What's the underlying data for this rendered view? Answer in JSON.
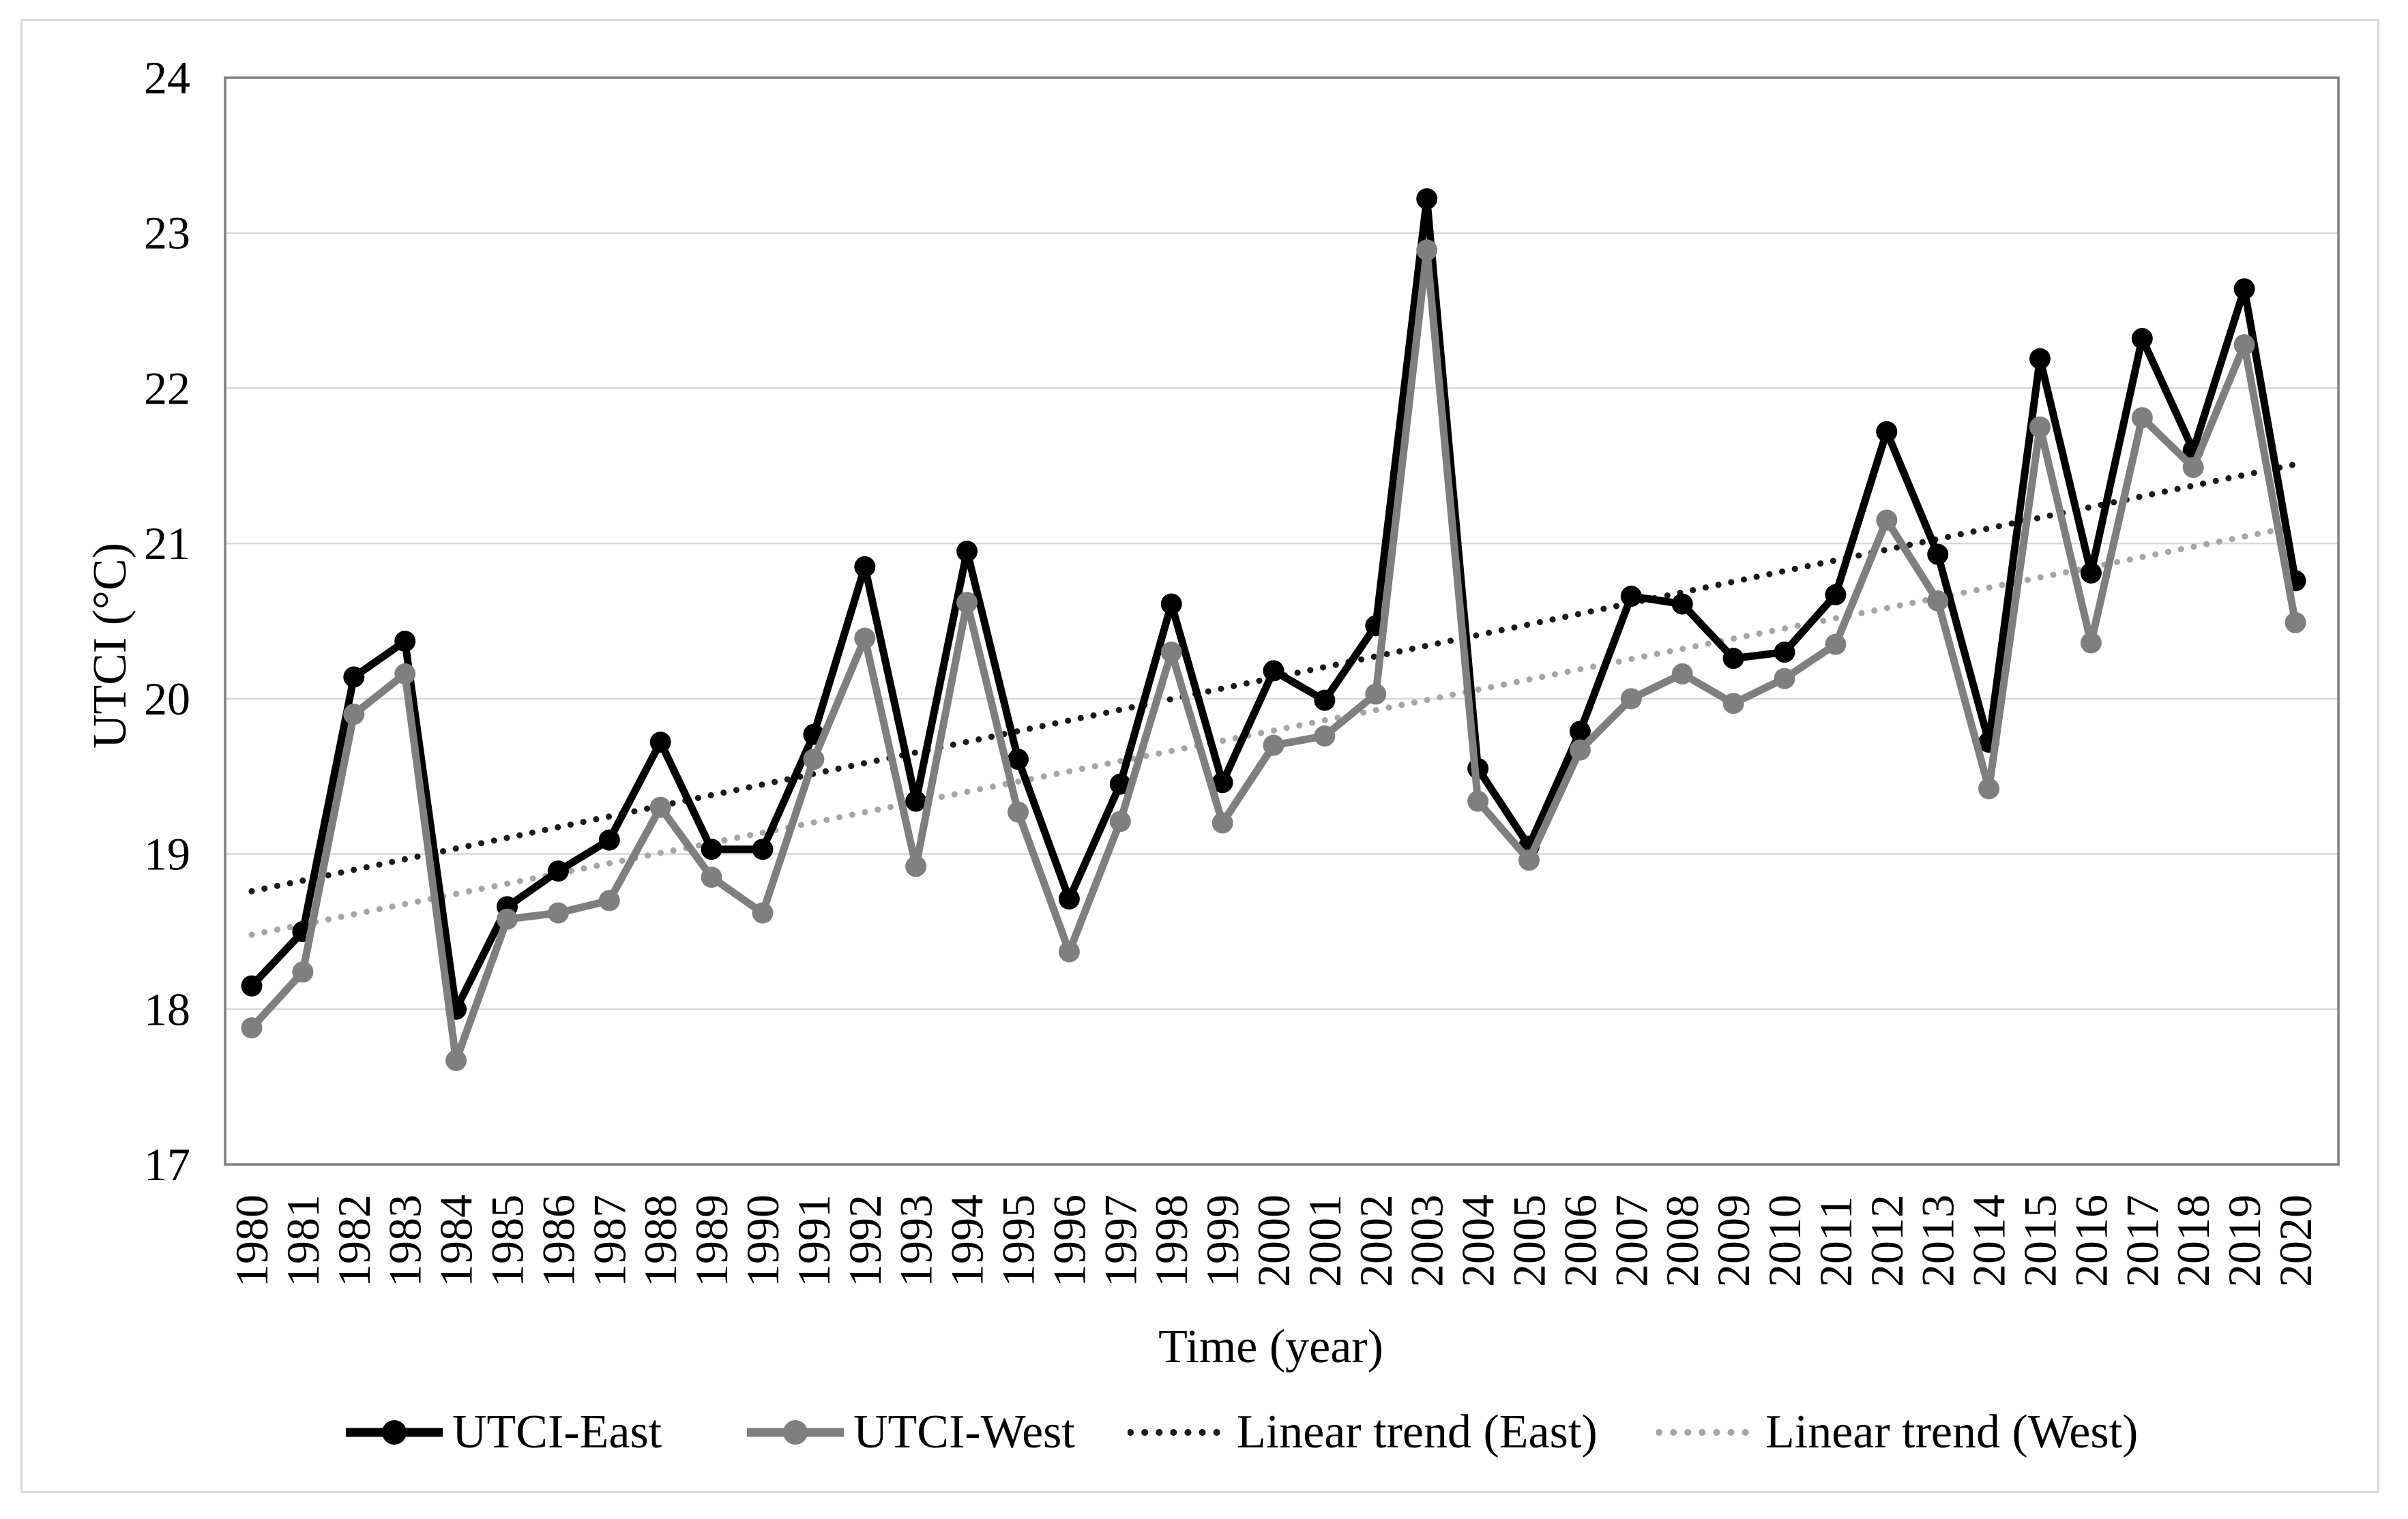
{
  "figure": {
    "background": "#ffffff",
    "outer_border_color": "#d9d9d9",
    "plot_border_color": "#7f7f7f",
    "gridline_color": "#d9d9d9"
  },
  "axes": {
    "y_title": "UTCI (°C)",
    "x_title": "Time (year)",
    "y_ticks": [
      "17",
      "18",
      "19",
      "20",
      "21",
      "22",
      "23",
      "24"
    ],
    "y_min": 17,
    "y_max": 24
  },
  "legend": {
    "items": [
      {
        "label": "UTCI-East",
        "marker": "line-dot",
        "color": "#000000"
      },
      {
        "label": "UTCI-West",
        "marker": "line-dot",
        "color": "#7f7f7f"
      },
      {
        "label": "Linear trend (East)",
        "marker": "dotted",
        "color": "#1a1a1a"
      },
      {
        "label": "Linear trend (West)",
        "marker": "dotted",
        "color": "#a6a6a6"
      }
    ]
  },
  "chart_data": {
    "type": "line",
    "title": "",
    "xlabel": "Time (year)",
    "ylabel": "UTCI (°C)",
    "ylim": [
      17,
      24
    ],
    "grid": true,
    "legend_position": "bottom",
    "x": [
      1980,
      1981,
      1982,
      1983,
      1984,
      1985,
      1986,
      1987,
      1988,
      1989,
      1990,
      1991,
      1992,
      1993,
      1994,
      1995,
      1996,
      1997,
      1998,
      1999,
      2000,
      2001,
      2002,
      2003,
      2004,
      2005,
      2006,
      2007,
      2008,
      2009,
      2010,
      2011,
      2012,
      2013,
      2014,
      2015,
      2016,
      2017,
      2018,
      2019,
      2020
    ],
    "series": [
      {
        "name": "UTCI-East",
        "color": "#000000",
        "values": [
          18.15,
          18.5,
          20.14,
          20.37,
          18.0,
          18.66,
          18.89,
          19.09,
          19.72,
          19.03,
          19.03,
          19.77,
          20.85,
          19.34,
          20.95,
          19.61,
          18.71,
          19.45,
          20.61,
          19.46,
          20.18,
          19.99,
          20.47,
          23.22,
          19.55,
          19.05,
          19.79,
          20.66,
          20.61,
          20.26,
          20.3,
          20.67,
          21.72,
          20.93,
          19.72,
          22.19,
          20.81,
          22.32,
          21.6,
          22.64,
          20.76
        ]
      },
      {
        "name": "UTCI-West",
        "color": "#7f7f7f",
        "values": [
          17.88,
          18.24,
          19.9,
          20.16,
          17.67,
          18.58,
          18.62,
          18.7,
          19.3,
          18.85,
          18.62,
          19.61,
          20.39,
          18.92,
          20.62,
          19.27,
          18.37,
          19.21,
          20.3,
          19.2,
          19.7,
          19.76,
          20.03,
          22.89,
          19.34,
          18.96,
          19.67,
          20.0,
          20.16,
          19.97,
          20.13,
          20.35,
          21.15,
          20.63,
          19.42,
          21.75,
          20.36,
          21.81,
          21.49,
          22.28,
          20.49
        ]
      }
    ],
    "trends": [
      {
        "name": "Linear trend (East)",
        "color": "#1a1a1a",
        "start_x": 1980,
        "start_y": 18.76,
        "end_x": 2020,
        "end_y": 21.51
      },
      {
        "name": "Linear trend (West)",
        "color": "#a6a6a6",
        "start_x": 1980,
        "start_y": 18.48,
        "end_x": 2020,
        "end_y": 21.11
      }
    ]
  }
}
